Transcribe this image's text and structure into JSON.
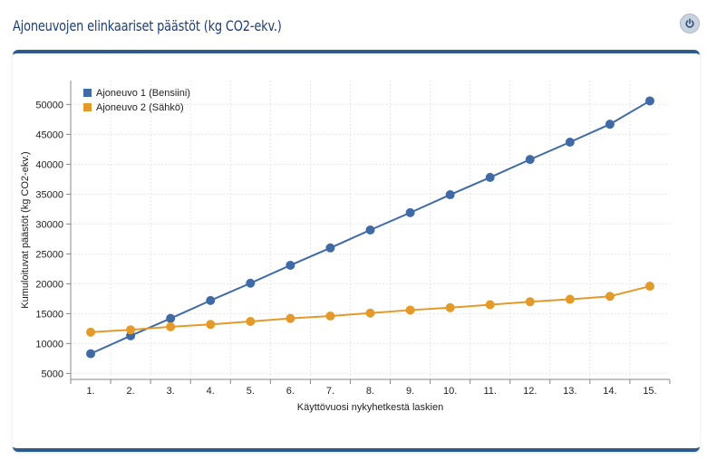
{
  "header": {
    "title": "Ajoneuvojen elinkaariset päästöt (kg CO2-ekv.)",
    "power_icon": "power-icon"
  },
  "chart_data": {
    "type": "line",
    "title": "",
    "xlabel": "Käyttövuosi nykyhetkestä laskien",
    "ylabel": "Kumuloituvat päästöt (kg CO2-ekv.)",
    "categories": [
      "1.",
      "2.",
      "3.",
      "4.",
      "5.",
      "6.",
      "7.",
      "8.",
      "9.",
      "10.",
      "11.",
      "12.",
      "13.",
      "14.",
      "15."
    ],
    "y_ticks": [
      "5000",
      "10000",
      "15000",
      "20000",
      "25000",
      "30000",
      "35000",
      "40000",
      "45000",
      "50000"
    ],
    "ylim": [
      4000,
      54000
    ],
    "grid": true,
    "legend_position": "top-left",
    "series": [
      {
        "name": "Ajoneuvo 1 (Bensiini)",
        "color": "#3f6aa6",
        "values": [
          8300,
          11300,
          14200,
          17200,
          20100,
          23100,
          26000,
          29000,
          31900,
          34900,
          37800,
          40800,
          43700,
          46700,
          50600
        ]
      },
      {
        "name": "Ajoneuvo 2 (Sähkö)",
        "color": "#e39a2a",
        "values": [
          11900,
          12300,
          12800,
          13200,
          13700,
          14200,
          14600,
          15100,
          15600,
          16000,
          16500,
          17000,
          17400,
          17900,
          19600
        ]
      }
    ]
  }
}
